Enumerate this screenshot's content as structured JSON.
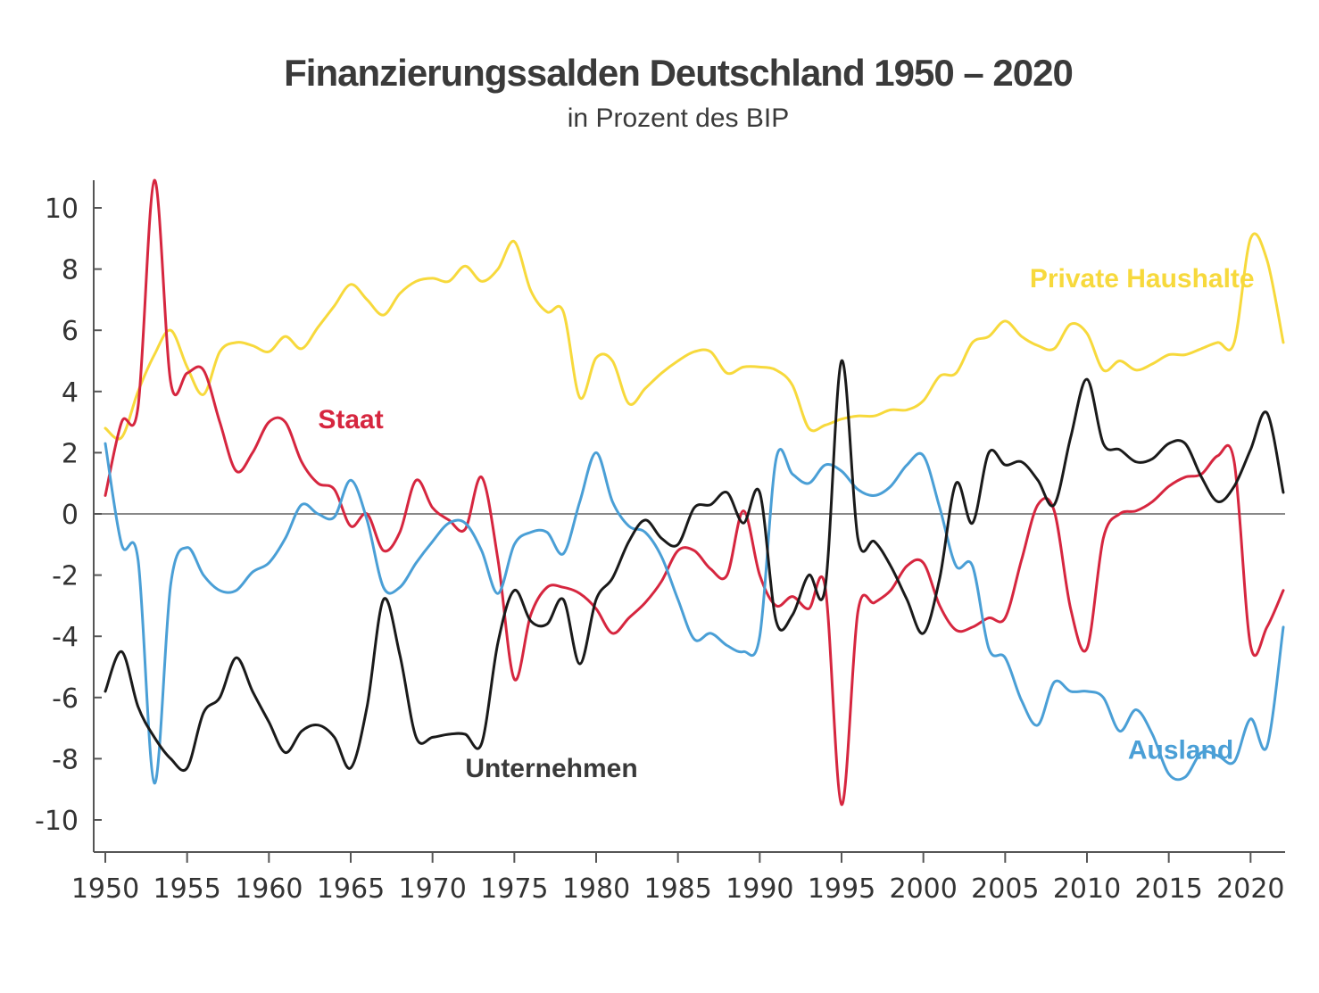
{
  "chart_data": {
    "type": "line",
    "title": "Finanzierungssalden Deutschland 1950 – 2020",
    "subtitle": "in Prozent des BIP",
    "xlabel": "",
    "ylabel": "",
    "xlim": [
      1950,
      2022
    ],
    "ylim": [
      -11,
      11
    ],
    "x_ticks": [
      "1950",
      "1955",
      "1960",
      "1965",
      "1970",
      "1975",
      "1980",
      "1985",
      "1990",
      "1995",
      "2000",
      "2005",
      "2010",
      "2015",
      "2020"
    ],
    "y_ticks": [
      "10",
      "8",
      "6",
      "4",
      "2",
      "0",
      "-2",
      "-4",
      "-6",
      "-8",
      "-10"
    ],
    "grid": false,
    "legend": "inline",
    "x": [
      1950,
      1951,
      1952,
      1953,
      1954,
      1955,
      1956,
      1957,
      1958,
      1959,
      1960,
      1961,
      1962,
      1963,
      1964,
      1965,
      1966,
      1967,
      1968,
      1969,
      1970,
      1971,
      1972,
      1973,
      1974,
      1975,
      1976,
      1977,
      1978,
      1979,
      1980,
      1981,
      1982,
      1983,
      1984,
      1985,
      1986,
      1987,
      1988,
      1989,
      1990,
      1991,
      1992,
      1993,
      1994,
      1995,
      1996,
      1997,
      1998,
      1999,
      2000,
      2001,
      2002,
      2003,
      2004,
      2005,
      2006,
      2007,
      2008,
      2009,
      2010,
      2011,
      2012,
      2013,
      2014,
      2015,
      2016,
      2017,
      2018,
      2019,
      2020,
      2021,
      2022
    ],
    "series": [
      {
        "name": "Private Haushalte",
        "color": "#f7d93c",
        "values": [
          2.8,
          2.5,
          4.0,
          5.2,
          6.0,
          4.8,
          3.9,
          5.3,
          5.6,
          5.5,
          5.3,
          5.8,
          5.4,
          6.1,
          6.8,
          7.5,
          7.0,
          6.5,
          7.2,
          7.6,
          7.7,
          7.6,
          8.1,
          7.6,
          8.0,
          8.9,
          7.3,
          6.6,
          6.6,
          3.8,
          5.1,
          5.0,
          3.6,
          4.1,
          4.6,
          5.0,
          5.3,
          5.3,
          4.6,
          4.8,
          4.8,
          4.7,
          4.2,
          2.8,
          2.9,
          3.1,
          3.2,
          3.2,
          3.4,
          3.4,
          3.7,
          4.5,
          4.6,
          5.6,
          5.8,
          6.3,
          5.8,
          5.5,
          5.4,
          6.2,
          5.9,
          4.7,
          5.0,
          4.7,
          4.9,
          5.2,
          5.2,
          5.4,
          5.6,
          5.6,
          9.0,
          8.3,
          5.6
        ]
      },
      {
        "name": "Staat",
        "color": "#d6263f",
        "values": [
          0.6,
          3.0,
          3.5,
          10.9,
          4.3,
          4.6,
          4.7,
          3.0,
          1.4,
          2.0,
          3.0,
          3.0,
          1.7,
          1.0,
          0.8,
          -0.4,
          0.0,
          -1.2,
          -0.6,
          1.1,
          0.2,
          -0.2,
          -0.5,
          1.2,
          -1.5,
          -5.4,
          -3.3,
          -2.4,
          -2.4,
          -2.6,
          -3.1,
          -3.9,
          -3.4,
          -2.9,
          -2.2,
          -1.2,
          -1.2,
          -1.8,
          -2.0,
          0.1,
          -2.0,
          -3.0,
          -2.7,
          -3.1,
          -2.4,
          -9.5,
          -3.2,
          -2.9,
          -2.5,
          -1.7,
          -1.6,
          -3.0,
          -3.8,
          -3.7,
          -3.4,
          -3.4,
          -1.5,
          0.3,
          0.1,
          -3.1,
          -4.4,
          -0.8,
          0.0,
          0.1,
          0.4,
          0.9,
          1.2,
          1.3,
          1.9,
          1.7,
          -4.3,
          -3.7,
          -2.5
        ]
      },
      {
        "name": "Ausland",
        "color": "#4a9fd6",
        "values": [
          2.3,
          -1.0,
          -1.5,
          -8.8,
          -2.3,
          -1.1,
          -2.0,
          -2.5,
          -2.5,
          -1.9,
          -1.6,
          -0.8,
          0.3,
          0.0,
          -0.1,
          1.1,
          -0.2,
          -2.4,
          -2.4,
          -1.6,
          -0.9,
          -0.3,
          -0.3,
          -1.2,
          -2.6,
          -1.0,
          -0.6,
          -0.6,
          -1.3,
          0.4,
          2.0,
          0.4,
          -0.4,
          -0.6,
          -1.4,
          -2.8,
          -4.1,
          -3.9,
          -4.3,
          -4.5,
          -4.0,
          1.8,
          1.3,
          1.0,
          1.6,
          1.4,
          0.8,
          0.6,
          0.9,
          1.6,
          1.9,
          0.2,
          -1.7,
          -1.7,
          -4.4,
          -4.7,
          -6.1,
          -6.9,
          -5.5,
          -5.8,
          -5.8,
          -6.0,
          -7.1,
          -6.4,
          -7.2,
          -8.5,
          -8.6,
          -7.8,
          -7.9,
          -8.1,
          -6.7,
          -7.6,
          -3.7
        ]
      },
      {
        "name": "Unternehmen",
        "color": "#1a1a1a",
        "values": [
          -5.8,
          -4.5,
          -6.3,
          -7.3,
          -8.0,
          -8.3,
          -6.5,
          -6.0,
          -4.7,
          -5.8,
          -6.8,
          -7.8,
          -7.1,
          -6.9,
          -7.3,
          -8.3,
          -6.3,
          -2.8,
          -4.6,
          -7.3,
          -7.3,
          -7.2,
          -7.2,
          -7.5,
          -4.2,
          -2.5,
          -3.5,
          -3.6,
          -2.8,
          -4.9,
          -2.8,
          -2.1,
          -0.9,
          -0.2,
          -0.8,
          -1.0,
          0.2,
          0.3,
          0.7,
          -0.3,
          0.7,
          -3.5,
          -3.3,
          -2.0,
          -2.4,
          5.0,
          -0.8,
          -0.9,
          -1.7,
          -2.8,
          -3.9,
          -2.1,
          1.0,
          -0.3,
          2.0,
          1.6,
          1.7,
          1.1,
          0.3,
          2.5,
          4.4,
          2.3,
          2.1,
          1.7,
          1.8,
          2.3,
          2.3,
          1.2,
          0.4,
          0.9,
          2.1,
          3.3,
          0.7
        ]
      }
    ],
    "annotations": [
      {
        "text": "Private Haushalte",
        "color": "#f7d93c",
        "x": 2006.5,
        "y": 7.4
      },
      {
        "text": "Staat",
        "color": "#d6263f",
        "x": 1963,
        "y": 2.8
      },
      {
        "text": "Ausland",
        "color": "#4a9fd6",
        "x": 2012.5,
        "y": -8.0
      },
      {
        "text": "Unternehmen",
        "color": "#3a3a3a",
        "x": 1972,
        "y": -8.6
      }
    ]
  }
}
